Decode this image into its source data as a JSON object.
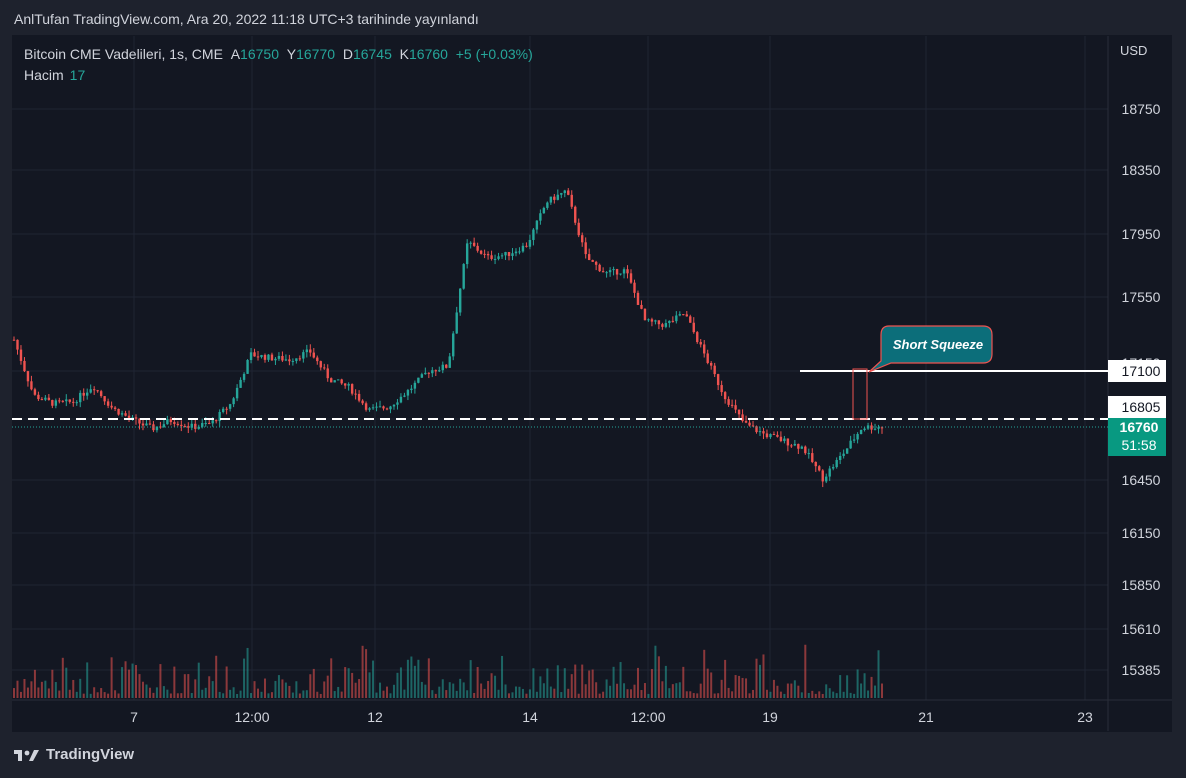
{
  "header": {
    "published": "AnlTufan TradingView.com, Ara 20, 2022 11:18 UTC+3 tarihinde yayınlandı"
  },
  "legend": {
    "symbol": "Bitcoin CME Vadelileri, 1s, CME",
    "open_label": "A",
    "open": "16750",
    "high_label": "Y",
    "high": "16770",
    "low_label": "D",
    "low": "16745",
    "close_label": "K",
    "close": "16760",
    "change": "+5 (+0.03%)",
    "volume_label": "Hacim",
    "volume": "17"
  },
  "axis": {
    "currency": "USD",
    "price_ticks": [
      "18750",
      "18350",
      "17950",
      "17550",
      "17150",
      "16450",
      "16150",
      "15850",
      "15610",
      "15385"
    ],
    "time_ticks": [
      "7",
      "12:00",
      "12",
      "14",
      "12:00",
      "19",
      "21",
      "23"
    ]
  },
  "levels": {
    "resistance": "17100",
    "dashed": "16805",
    "last_price": "16760",
    "countdown": "51:58"
  },
  "annotation": {
    "text": "Short Squeeze"
  },
  "footer": {
    "brand": "TradingView"
  },
  "colors": {
    "up": "#26a69a",
    "down": "#ef5350",
    "background": "#131722",
    "label_bg": "#ffffff",
    "last_price_bg": "#089981",
    "annotation_bg": "#0c6e7a"
  },
  "chart_data": {
    "type": "candlestick",
    "interval": "1 hour",
    "x_ticks": [
      "7",
      "12:00",
      "12",
      "14",
      "12:00",
      "19",
      "21",
      "23"
    ],
    "price_path": [
      [
        "start",
        17290
      ],
      [
        "",
        16950
      ],
      [
        "",
        16900
      ],
      [
        "",
        16910
      ],
      [
        "",
        17010
      ],
      [
        "",
        16870
      ],
      [
        "",
        16800
      ],
      [
        "",
        16750
      ],
      [
        "",
        16800
      ],
      [
        "",
        16760
      ],
      [
        "",
        16780
      ],
      [
        "",
        16900
      ],
      [
        "",
        17200
      ],
      [
        "",
        17180
      ],
      [
        "",
        17170
      ],
      [
        "",
        17220
      ],
      [
        "",
        17050
      ],
      [
        "",
        17000
      ],
      [
        "",
        16860
      ],
      [
        "",
        16880
      ],
      [
        "",
        16980
      ],
      [
        "",
        17100
      ],
      [
        "",
        17130
      ],
      [
        "",
        17900
      ],
      [
        "",
        17800
      ],
      [
        "",
        17820
      ],
      [
        "",
        17880
      ],
      [
        "",
        18150
      ],
      [
        "",
        18220
      ],
      [
        "",
        17800
      ],
      [
        "",
        17700
      ],
      [
        "",
        17720
      ],
      [
        "",
        17400
      ],
      [
        "",
        17380
      ],
      [
        "",
        17450
      ],
      [
        "",
        17200
      ],
      [
        "",
        16950
      ],
      [
        "",
        16780
      ],
      [
        "",
        16720
      ],
      [
        "",
        16680
      ],
      [
        "",
        16640
      ],
      [
        "",
        16460
      ],
      [
        "",
        16600
      ],
      [
        "",
        16760
      ],
      [
        "end",
        16760
      ]
    ],
    "volume_range": [
      0,
      1200
    ],
    "ylim": [
      16000,
      18900
    ]
  }
}
